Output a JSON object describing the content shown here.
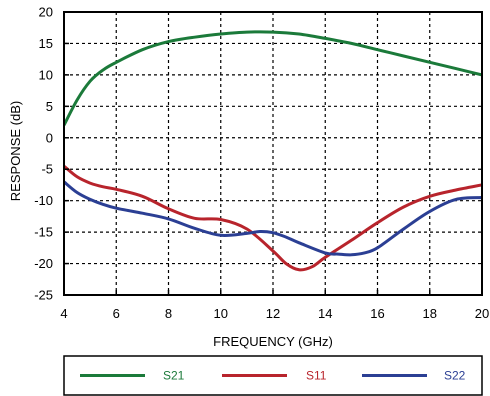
{
  "chart_data": {
    "type": "line",
    "title": "",
    "xlabel": "FREQUENCY (GHz)",
    "ylabel": "RESPONSE (dB)",
    "xlim": [
      4,
      20
    ],
    "ylim": [
      -25,
      20
    ],
    "xticks": [
      4,
      6,
      8,
      10,
      12,
      14,
      16,
      18,
      20
    ],
    "yticks": [
      20,
      15,
      10,
      5,
      0,
      -5,
      -10,
      -15,
      -20,
      -25
    ],
    "grid": true,
    "legend_position": "bottom",
    "series": [
      {
        "name": "S21",
        "color": "#1b7a3a",
        "x": [
          4,
          4.5,
          5,
          5.5,
          6,
          7,
          8,
          9,
          10,
          11,
          12,
          13,
          14,
          15,
          16,
          17,
          18,
          19,
          20
        ],
        "y": [
          2,
          6,
          9,
          10.8,
          12,
          14,
          15.3,
          16,
          16.5,
          16.8,
          16.8,
          16.5,
          15.8,
          15,
          14,
          13,
          12,
          11,
          10
        ]
      },
      {
        "name": "S11",
        "color": "#b8242c",
        "x": [
          4,
          4.5,
          5,
          5.5,
          6,
          7,
          8,
          9,
          10,
          11,
          12,
          12.5,
          13,
          13.5,
          14,
          15,
          16,
          17,
          18,
          19,
          20
        ],
        "y": [
          -4.5,
          -6.2,
          -7.2,
          -7.8,
          -8.2,
          -9.3,
          -11.3,
          -12.8,
          -13,
          -14.5,
          -18,
          -20,
          -21,
          -20.5,
          -19,
          -16.3,
          -13.5,
          -11,
          -9.3,
          -8.3,
          -7.5
        ]
      },
      {
        "name": "S22",
        "color": "#2b3f94",
        "x": [
          4,
          4.5,
          5,
          5.5,
          6,
          7,
          8,
          9,
          10,
          11,
          11.5,
          12,
          12.5,
          13,
          14,
          14.5,
          15,
          15.5,
          16,
          17,
          18,
          19,
          20
        ],
        "y": [
          -7,
          -8.7,
          -9.8,
          -10.6,
          -11.2,
          -12,
          -12.9,
          -14.4,
          -15.5,
          -15.2,
          -14.9,
          -15.1,
          -15.8,
          -16.7,
          -18.3,
          -18.5,
          -18.6,
          -18.3,
          -17.5,
          -14.5,
          -11.7,
          -9.8,
          -9.5
        ]
      }
    ]
  }
}
